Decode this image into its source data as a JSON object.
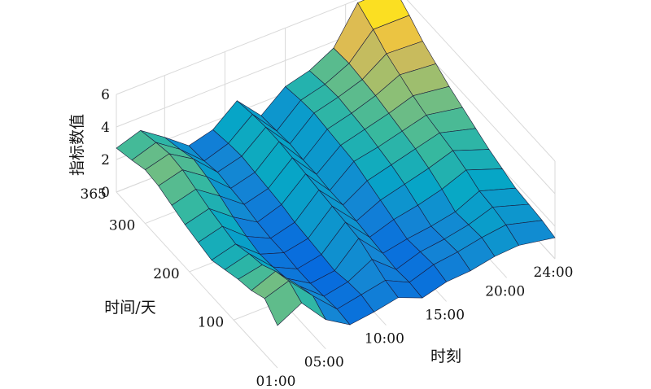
{
  "chart_data": {
    "type": "surface",
    "title": "",
    "xlabel": "时刻",
    "ylabel": "时间/天",
    "zlabel": "指标数值",
    "x_ticks": [
      "01:00",
      "05:00",
      "10:00",
      "15:00",
      "20:00",
      "24:00"
    ],
    "x_range": [
      1,
      24
    ],
    "y_ticks": [
      "100",
      "200",
      "300",
      "365"
    ],
    "y_range": [
      1,
      365
    ],
    "z_ticks": [
      "0",
      "2",
      "4",
      "6"
    ],
    "z_range": [
      0,
      6
    ],
    "grid": true,
    "colormap": "parula",
    "colormap_colors": [
      "#352a87",
      "#0363e1",
      "#1485d4",
      "#06a7c6",
      "#38b99e",
      "#92bf73",
      "#d9ba56",
      "#fcce2e",
      "#f9fb0e"
    ],
    "hours": [
      1,
      3,
      5,
      7,
      9,
      11,
      13,
      15,
      17,
      19,
      21,
      24
    ],
    "days": [
      1,
      30,
      60,
      90,
      120,
      150,
      180,
      210,
      240,
      270,
      300,
      330,
      365
    ],
    "values": [
      [
        2.6,
        3.4,
        1.8,
        0.9,
        1.1,
        1.4,
        0.8,
        1.2,
        1.3,
        1.6,
        1.7,
        1.3
      ],
      [
        3.4,
        3.9,
        2.4,
        1.0,
        1.3,
        1.6,
        0.9,
        1.4,
        1.6,
        1.9,
        2.1,
        1.5
      ],
      [
        3.0,
        3.6,
        2.1,
        0.9,
        1.2,
        2.0,
        0.8,
        1.3,
        1.5,
        1.8,
        2.3,
        1.6
      ],
      [
        2.8,
        3.1,
        1.7,
        0.8,
        1.0,
        2.4,
        0.9,
        1.2,
        1.4,
        1.7,
        2.4,
        1.7
      ],
      [
        2.5,
        2.9,
        1.5,
        0.8,
        1.1,
        2.5,
        1.0,
        1.5,
        1.8,
        2.2,
        2.8,
        2.0
      ],
      [
        2.2,
        2.6,
        1.4,
        0.9,
        1.2,
        2.6,
        1.1,
        1.8,
        2.2,
        2.6,
        3.1,
        2.3
      ],
      [
        2.4,
        2.8,
        1.6,
        0.9,
        1.3,
        2.7,
        1.2,
        2.1,
        2.5,
        2.9,
        3.3,
        2.7
      ],
      [
        2.6,
        3.0,
        1.9,
        1.0,
        1.5,
        2.8,
        1.2,
        2.4,
        2.7,
        3.1,
        3.5,
        3.1
      ],
      [
        2.9,
        3.3,
        2.3,
        1.2,
        1.6,
        2.9,
        1.3,
        2.5,
        2.9,
        3.3,
        3.8,
        3.5
      ],
      [
        3.2,
        3.6,
        2.6,
        1.3,
        1.7,
        3.0,
        1.3,
        2.6,
        3.0,
        3.5,
        4.2,
        4.0
      ],
      [
        3.3,
        3.7,
        2.8,
        1.4,
        1.8,
        3.0,
        1.4,
        2.7,
        3.1,
        3.6,
        4.6,
        4.5
      ],
      [
        3.0,
        3.5,
        2.5,
        1.2,
        1.7,
        2.9,
        1.3,
        2.6,
        3.0,
        3.7,
        5.2,
        5.2
      ],
      [
        2.7,
        3.2,
        2.2,
        1.1,
        1.5,
        2.7,
        1.2,
        2.4,
        2.8,
        3.6,
        5.8,
        5.9
      ]
    ]
  }
}
